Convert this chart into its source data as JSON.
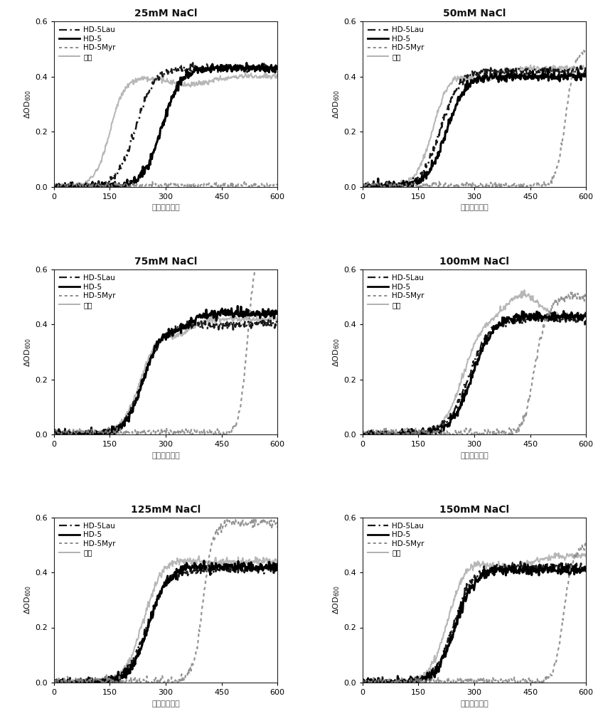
{
  "titles": [
    "25mM NaCl",
    "50mM NaCl",
    "75mM NaCl",
    "100mM NaCl",
    "125mM NaCl",
    "150mM NaCl"
  ],
  "xlabel": "时间（分钟）",
  "ylim": [
    0,
    0.6
  ],
  "yticks": [
    0.0,
    0.2,
    0.4,
    0.6
  ],
  "xlim": [
    0,
    600
  ],
  "xticks": [
    0,
    150,
    300,
    450,
    600
  ],
  "legend_labels": [
    "HD-5Lau",
    "HD-5",
    "HD-5Myr",
    "对照"
  ],
  "bg_color": "#ffffff",
  "figure_bg": "#ffffff"
}
